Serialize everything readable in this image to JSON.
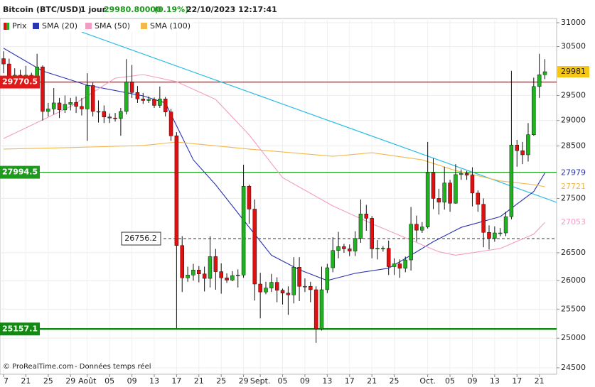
{
  "chart_data": {
    "type": "candlestick",
    "title": "Bitcoin (BTC/USD)",
    "period": "1 jour",
    "price": "29980.80000",
    "change": "(0.19%)",
    "datetime": "22/10/2023 12:17:41",
    "footer": [
      "© ProRealTime.com",
      "- Données temps réel"
    ],
    "log_y": true,
    "grid": true,
    "ylim": [
      24393,
      31090
    ],
    "yticks": [
      24500,
      25000,
      25500,
      26000,
      26500,
      27500,
      28500,
      29000,
      29500,
      30500,
      31000
    ],
    "xlim": [
      -0.64,
      99.1
    ],
    "xticks": [
      {
        "value": 0,
        "label": "7"
      },
      {
        "value": 4,
        "label": "21"
      },
      {
        "value": 8,
        "label": "25"
      },
      {
        "value": 12,
        "label": "29"
      },
      {
        "value": 15,
        "label": "Août"
      },
      {
        "value": 19,
        "label": "05"
      },
      {
        "value": 23,
        "label": "09"
      },
      {
        "value": 27,
        "label": "13"
      },
      {
        "value": 31,
        "label": "17"
      },
      {
        "value": 35,
        "label": "21"
      },
      {
        "value": 39,
        "label": "25"
      },
      {
        "value": 43,
        "label": "29"
      },
      {
        "value": 46,
        "label": "Sept."
      },
      {
        "value": 50,
        "label": "05"
      },
      {
        "value": 54,
        "label": "09"
      },
      {
        "value": 58,
        "label": "13"
      },
      {
        "value": 62,
        "label": "17"
      },
      {
        "value": 66,
        "label": "21"
      },
      {
        "value": 70,
        "label": "25"
      },
      {
        "value": 76,
        "label": "Oct."
      },
      {
        "value": 80,
        "label": "05"
      },
      {
        "value": 84,
        "label": "09"
      },
      {
        "value": 88,
        "label": "13"
      },
      {
        "value": 92,
        "label": "17"
      },
      {
        "value": 96,
        "label": "21"
      }
    ],
    "candles": {
      "name": "Prix",
      "up_color": "#1fb31f",
      "down_color": "#e01010",
      "open": [
        30250,
        30140,
        29860,
        29910,
        29800,
        29910,
        29790,
        30080,
        29180,
        29230,
        29350,
        29210,
        29320,
        29360,
        29280,
        29230,
        29700,
        29180,
        29180,
        29070,
        29050,
        29040,
        29180,
        29770,
        29560,
        29430,
        29400,
        29420,
        29300,
        29430,
        29170,
        28700,
        26630,
        26050,
        26100,
        26190,
        26120,
        26040,
        26430,
        26160,
        26050,
        26010,
        26090,
        26100,
        27730,
        27300,
        25940,
        25800,
        25870,
        25970,
        25830,
        25780,
        25750,
        26240,
        25900,
        25900,
        25840,
        25160,
        25840,
        26230,
        26540,
        26610,
        26570,
        26530,
        26760,
        27210,
        27130,
        26570,
        26580,
        26580,
        26250,
        26300,
        26220,
        26370,
        27020,
        26910,
        26970,
        27990,
        27500,
        27430,
        27790,
        27410,
        27950,
        27970,
        27940,
        27600,
        27390,
        26870,
        26760,
        26860,
        26860,
        27160,
        28520,
        28410,
        28330,
        28720,
        29680,
        29920
      ],
      "high": [
        30400,
        30250,
        30050,
        30020,
        30100,
        29960,
        30350,
        30110,
        29350,
        29650,
        29450,
        29500,
        29450,
        29480,
        29450,
        29950,
        29760,
        29400,
        29300,
        29140,
        29150,
        29250,
        30240,
        30120,
        29690,
        29550,
        29480,
        29460,
        29680,
        29470,
        29230,
        28770,
        26800,
        26250,
        26300,
        26260,
        26250,
        26800,
        26570,
        26310,
        26130,
        26170,
        26200,
        28140,
        27760,
        27480,
        26140,
        25980,
        26120,
        26060,
        25860,
        25900,
        26420,
        26420,
        26040,
        25980,
        25900,
        26250,
        26300,
        26780,
        26880,
        26660,
        26650,
        26890,
        27480,
        27380,
        27170,
        26730,
        26620,
        26720,
        26400,
        26380,
        26430,
        27340,
        27180,
        27060,
        28580,
        28260,
        27680,
        28100,
        27850,
        28150,
        28050,
        28020,
        28090,
        27650,
        27500,
        27000,
        26980,
        26950,
        27250,
        30000,
        28620,
        28580,
        28950,
        29860,
        30350,
        30240
      ],
      "low": [
        29950,
        29700,
        29750,
        29720,
        29750,
        29700,
        29750,
        29000,
        29080,
        29120,
        29050,
        29150,
        29200,
        29150,
        29100,
        28600,
        29080,
        28960,
        28950,
        28950,
        28980,
        28700,
        29120,
        29450,
        29350,
        29330,
        29350,
        29250,
        29250,
        29080,
        28600,
        25170,
        25800,
        25980,
        26000,
        25970,
        25810,
        25880,
        25840,
        25770,
        25960,
        25990,
        25880,
        26050,
        27030,
        25650,
        25340,
        25760,
        25800,
        25620,
        25580,
        25400,
        25600,
        25640,
        25800,
        25620,
        24920,
        25130,
        25780,
        26150,
        26400,
        26500,
        26440,
        26440,
        26680,
        26900,
        26400,
        26380,
        26520,
        26100,
        26100,
        26050,
        26150,
        26180,
        26700,
        26860,
        26940,
        27300,
        27200,
        27290,
        27250,
        27400,
        27850,
        27850,
        27350,
        27250,
        26600,
        26560,
        26700,
        26800,
        26800,
        27110,
        28100,
        28150,
        28200,
        28700,
        29450,
        29830
      ],
      "close": [
        30140,
        29860,
        29910,
        29800,
        29910,
        29790,
        30080,
        29180,
        29230,
        29350,
        29210,
        29320,
        29360,
        29280,
        29230,
        29700,
        29180,
        29180,
        29070,
        29050,
        29040,
        29180,
        29770,
        29560,
        29430,
        29400,
        29420,
        29300,
        29430,
        29170,
        28700,
        26630,
        26050,
        26100,
        26190,
        26120,
        26040,
        26430,
        26160,
        26050,
        26010,
        26090,
        26100,
        27730,
        27300,
        25940,
        25800,
        25870,
        25970,
        25830,
        25780,
        25750,
        26240,
        25900,
        25900,
        25840,
        25160,
        25840,
        26230,
        26540,
        26610,
        26570,
        26530,
        26760,
        27210,
        27130,
        26570,
        26580,
        26580,
        26250,
        26300,
        26220,
        26370,
        27020,
        26910,
        26970,
        27990,
        27500,
        27430,
        27790,
        27410,
        27950,
        27970,
        27940,
        27600,
        27390,
        26870,
        26760,
        26860,
        26860,
        27160,
        28520,
        28410,
        28330,
        28720,
        29680,
        29920,
        29981
      ]
    },
    "series": [
      {
        "name": "SMA (20)",
        "color": "#2a35b0",
        "x": [
          0,
          7,
          15,
          25,
          29,
          34,
          38,
          43,
          48,
          53,
          58,
          63,
          69,
          73,
          77,
          82,
          89,
          95,
          97
        ],
        "values": [
          30465,
          29995,
          29707,
          29491,
          29349,
          28233,
          27758,
          27095,
          26455,
          26194,
          26003,
          26130,
          26222,
          26455,
          26700,
          26962,
          27160,
          27630,
          27979
        ]
      },
      {
        "name": "SMA (50)",
        "color": "#f29cc4",
        "x": [
          0,
          12,
          20,
          25,
          31,
          38,
          44,
          50,
          59,
          66,
          72,
          78,
          81,
          89,
          95,
          97
        ],
        "values": [
          28646,
          29278,
          29850,
          29923,
          29778,
          29420,
          28718,
          27893,
          27359,
          27030,
          26771,
          26517,
          26455,
          26576,
          26837,
          27053
        ]
      },
      {
        "name": "SMA (100)",
        "color": "#f2b84b",
        "x": [
          0,
          12,
          25,
          31,
          44,
          59,
          66,
          75,
          81,
          89,
          95,
          97
        ],
        "values": [
          28441,
          28470,
          28510,
          28578,
          28441,
          28301,
          28370,
          28233,
          28027,
          27829,
          27760,
          27721
        ]
      }
    ],
    "trendline": {
      "color": "#2bbde6",
      "x": [
        14,
        99.1
      ],
      "values": [
        30805,
        27426
      ]
    },
    "levels": [
      {
        "value": 29770.5,
        "color": "#e01818"
      },
      {
        "value": 27994.5,
        "color": "#1f9a1f"
      },
      {
        "value": 25157.1,
        "color": "#108a10"
      },
      {
        "value": 26756.2,
        "color": "#333333",
        "style": "dashed"
      }
    ],
    "price_box_color": "#f5c518"
  }
}
